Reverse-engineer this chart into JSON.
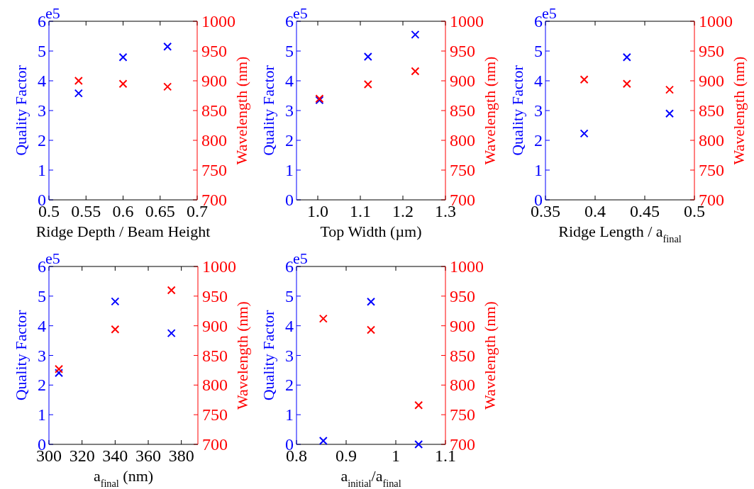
{
  "chart_data": [
    {
      "type": "scatter",
      "xlabel": "Ridge Depth / Beam Height",
      "ylabel": "Quality Factor",
      "y2label": "Wavelength (nm)",
      "annotations": [
        "e5"
      ],
      "marker": "cross",
      "xlim": [
        0.5,
        0.7
      ],
      "xticks": [
        0.5,
        0.55,
        0.6,
        0.65,
        0.7
      ],
      "ylim": [
        0,
        6
      ],
      "yticks": [
        0,
        1,
        2,
        3,
        4,
        5,
        6
      ],
      "y2lim": [
        700,
        1000
      ],
      "y2ticks": [
        700,
        750,
        800,
        850,
        900,
        950,
        1000
      ],
      "series": [
        {
          "color": "#0000ff",
          "x": [
            0.54,
            0.6,
            0.66
          ],
          "values": [
            3.58,
            4.79,
            5.15
          ]
        },
        {
          "color": "#ff0000",
          "axis": "y2",
          "x": [
            0.54,
            0.6,
            0.66
          ],
          "values": [
            900,
            895,
            890
          ]
        }
      ]
    },
    {
      "type": "scatter",
      "xlabel": "Top Width (µm)",
      "ylabel": "Quality Factor",
      "y2label": "Wavelength (nm)",
      "annotations": [
        "e5"
      ],
      "marker": "cross",
      "xlim": [
        0.95,
        1.3
      ],
      "xticks": [
        {
          "value": 1,
          "label": "1.0"
        },
        1.1,
        1.2,
        1.3
      ],
      "ylim": [
        0,
        6
      ],
      "yticks": [
        0,
        1,
        2,
        3,
        4,
        5,
        6
      ],
      "y2lim": [
        700,
        1000
      ],
      "y2ticks": [
        700,
        750,
        800,
        850,
        900,
        950,
        1000
      ],
      "series": [
        {
          "color": "#0000ff",
          "x": [
            1.004,
            1.118,
            1.229
          ],
          "values": [
            3.35,
            4.81,
            5.55
          ]
        },
        {
          "color": "#ff0000",
          "axis": "y2",
          "x": [
            1.004,
            1.118,
            1.229
          ],
          "values": [
            870,
            894,
            916
          ]
        }
      ]
    },
    {
      "type": "scatter",
      "xlabel": "Ridge Length / a$_{final}$",
      "ylabel": "Quality Factor",
      "y2label": "Wavelength (nm)",
      "annotations": [
        "e5"
      ],
      "marker": "cross",
      "xlim": [
        0.35,
        0.5
      ],
      "xticks": [
        0.35,
        0.4,
        0.45,
        0.5
      ],
      "ylim": [
        0,
        6
      ],
      "yticks": [
        0,
        1,
        2,
        3,
        4,
        5,
        6
      ],
      "y2lim": [
        700,
        1000
      ],
      "y2ticks": [
        700,
        750,
        800,
        850,
        900,
        950,
        1000
      ],
      "series": [
        {
          "color": "#0000ff",
          "x": [
            0.389,
            0.432,
            0.475
          ],
          "values": [
            2.23,
            4.79,
            2.9
          ]
        },
        {
          "color": "#ff0000",
          "axis": "y2",
          "x": [
            0.389,
            0.432,
            0.475
          ],
          "values": [
            902,
            895,
            885
          ]
        }
      ]
    },
    {
      "type": "scatter",
      "xlabel": "a$_{final}$ (nm)",
      "ylabel": "Quality Factor",
      "y2label": "Wavelength (nm)",
      "annotations": [
        "e5"
      ],
      "marker": "cross",
      "xlim": [
        300,
        390
      ],
      "xticks": [
        300,
        320,
        340,
        360,
        380
      ],
      "ylim": [
        0,
        6
      ],
      "yticks": [
        0,
        1,
        2,
        3,
        4,
        5,
        6
      ],
      "y2lim": [
        700,
        1000
      ],
      "y2ticks": [
        700,
        750,
        800,
        850,
        900,
        950,
        1000
      ],
      "series": [
        {
          "color": "#0000ff",
          "x": [
            306,
            340,
            374
          ],
          "values": [
            2.41,
            4.82,
            3.75
          ]
        },
        {
          "color": "#ff0000",
          "axis": "y2",
          "x": [
            306,
            340,
            374
          ],
          "values": [
            827,
            894,
            960
          ]
        }
      ]
    },
    {
      "type": "scatter",
      "xlabel": "a$_{initial}$/a$_{final}$",
      "ylabel": "Quality Factor",
      "y2label": "Wavelength (nm)",
      "annotations": [
        "e5"
      ],
      "marker": "cross",
      "xlim": [
        0.8,
        1.1
      ],
      "xticks": [
        0.8,
        0.9,
        1,
        1.1
      ],
      "ylim": [
        0,
        6
      ],
      "yticks": [
        0,
        1,
        2,
        3,
        4,
        5,
        6
      ],
      "y2lim": [
        700,
        1000
      ],
      "y2ticks": [
        700,
        750,
        800,
        850,
        900,
        950,
        1000
      ],
      "series": [
        {
          "color": "#0000ff",
          "x": [
            0.854,
            0.95,
            1.046
          ],
          "values": [
            0.12,
            4.81,
            0
          ]
        },
        {
          "color": "#ff0000",
          "axis": "y2",
          "x": [
            0.854,
            0.95,
            1.046
          ],
          "values": [
            912,
            893,
            766
          ]
        }
      ]
    }
  ]
}
